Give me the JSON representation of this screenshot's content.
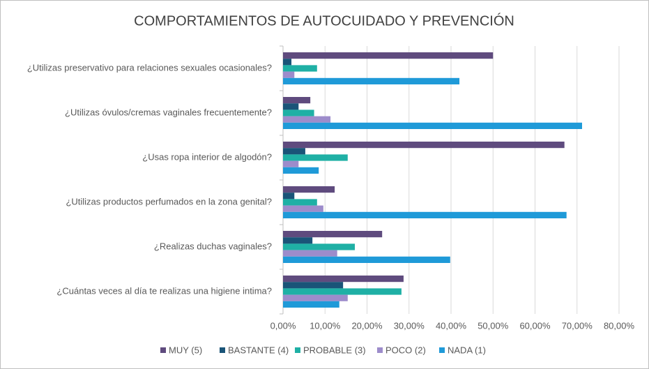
{
  "chart_data": {
    "type": "hbar",
    "title": "COMPORTAMIENTOS DE AUTOCUIDADO Y PREVENCIÓN",
    "categories": [
      "¿Utilizas preservativo para relaciones sexuales ocasionales?",
      "¿Utilizas óvulos/cremas vaginales frecuentemente?",
      "¿Usas ropa interior de algodón?",
      "¿Utilizas productos perfumados en la zona genital?",
      "¿Realizas duchas vaginales?",
      "¿Cuántas veces al día te realizas una higiene intima?"
    ],
    "series": [
      {
        "name": "MUY (5)",
        "color": "#5f4b7e",
        "values": [
          50,
          6.5,
          67,
          12.3,
          23.6,
          28.7
        ]
      },
      {
        "name": "BASTANTE (4)",
        "color": "#1a5478",
        "values": [
          2,
          3.7,
          5.3,
          2.7,
          7,
          14.3
        ]
      },
      {
        "name": "PROBABLE (3)",
        "color": "#1fb0a5",
        "values": [
          8.1,
          7.4,
          15.4,
          8.1,
          17.1,
          28.2
        ]
      },
      {
        "name": "POCO (2)",
        "color": "#9d8ccb",
        "values": [
          2.7,
          11.3,
          3.7,
          9.6,
          12.9,
          15.4
        ]
      },
      {
        "name": "NADA (1)",
        "color": "#1f9ad8",
        "values": [
          42,
          71.2,
          8.5,
          67.5,
          39.8,
          13.4
        ]
      }
    ],
    "xlim": [
      0,
      80
    ],
    "xticks": [
      {
        "value": 0,
        "label": "0,00%"
      },
      {
        "value": 10,
        "label": "10,00%"
      },
      {
        "value": 20,
        "label": "20,00%"
      },
      {
        "value": 30,
        "label": "30,00%"
      },
      {
        "value": 40,
        "label": "40,00%"
      },
      {
        "value": 50,
        "label": "50,00%"
      },
      {
        "value": 60,
        "label": "60,00%"
      },
      {
        "value": 70,
        "label": "70,00%"
      },
      {
        "value": 80,
        "label": "80,00%"
      }
    ],
    "grid": true,
    "legend": "bottom"
  }
}
